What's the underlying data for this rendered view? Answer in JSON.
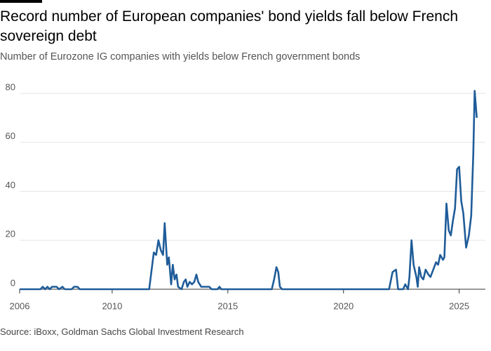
{
  "chart_data": {
    "type": "line",
    "title": "Record number of European companies' bond yields fall below French sovereign debt",
    "subtitle": "Number of Eurozone IG companies with yields below French government bonds",
    "source": "Source: iBoxx, Goldman Sachs Global Investment Research",
    "color": "#1f5c99",
    "x": [
      2006,
      2006.9,
      2007.0,
      2007.1,
      2007.2,
      2007.3,
      2007.4,
      2007.6,
      2007.7,
      2007.85,
      2007.95,
      2008.25,
      2008.35,
      2008.5,
      2008.6,
      2011.6,
      2011.8,
      2011.9,
      2012.0,
      2012.1,
      2012.2,
      2012.27,
      2012.38,
      2012.45,
      2012.55,
      2012.62,
      2012.7,
      2012.78,
      2012.85,
      2013.0,
      2013.1,
      2013.18,
      2013.25,
      2013.35,
      2013.45,
      2013.55,
      2013.64,
      2013.72,
      2013.85,
      2014.2,
      2014.3,
      2014.55,
      2014.64,
      2014.72,
      2016.9,
      2017.0,
      2017.1,
      2017.18,
      2017.25,
      2017.35,
      2021.97,
      2022.12,
      2022.27,
      2022.36,
      2022.58,
      2022.67,
      2022.79,
      2022.85,
      2022.94,
      2023.03,
      2023.15,
      2023.21,
      2023.27,
      2023.36,
      2023.45,
      2023.55,
      2023.67,
      2023.76,
      2023.88,
      2024.0,
      2024.09,
      2024.18,
      2024.3,
      2024.36,
      2024.45,
      2024.55,
      2024.64,
      2024.73,
      2024.82,
      2024.91,
      2025.0,
      2025.09,
      2025.18,
      2025.3,
      2025.42,
      2025.52,
      2025.61,
      2025.67,
      2025.76
    ],
    "values": [
      0,
      0,
      1,
      0,
      1,
      0,
      1,
      1,
      0,
      1,
      0,
      0,
      1,
      1,
      0,
      0,
      15,
      14,
      20,
      16,
      14,
      27,
      10,
      13,
      2,
      10,
      4,
      6,
      1,
      0,
      3,
      4,
      1,
      3,
      2,
      3,
      6,
      3,
      1,
      1,
      0,
      0,
      1,
      0,
      0,
      4,
      9,
      7,
      1,
      0,
      0,
      7,
      8,
      0,
      0,
      2,
      0,
      5,
      20,
      10,
      5,
      1,
      9,
      5,
      4,
      8,
      6,
      5,
      8,
      11,
      10,
      14,
      12,
      13,
      35,
      24,
      22,
      28,
      33,
      49,
      50,
      36,
      31,
      17,
      22,
      30,
      55,
      81,
      70
    ],
    "xlim": [
      2006,
      2025.8
    ],
    "xticks": [
      2006,
      2010,
      2015,
      2020,
      2025
    ],
    "ylim": [
      0,
      84
    ],
    "yticks": [
      0,
      20,
      40,
      60,
      80
    ],
    "grid": true
  }
}
